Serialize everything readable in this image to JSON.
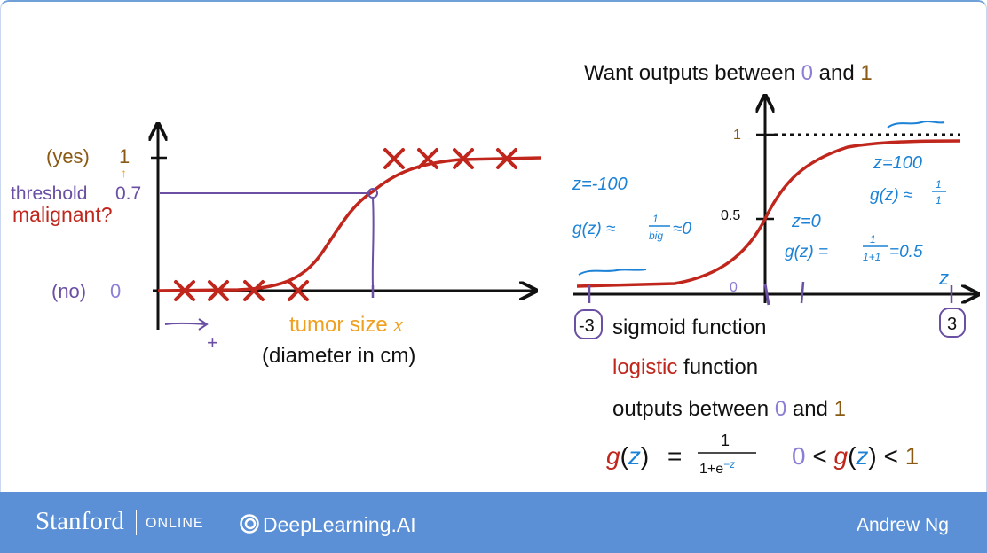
{
  "left_plot": {
    "y_yes_prefix": "(yes)",
    "y_yes_value": "1",
    "y_no_prefix": "(no)",
    "y_no_value": "0",
    "threshold_label": "threshold",
    "threshold_value": "0.7",
    "malignant_label": "malignant?",
    "x_label": "tumor size",
    "x_var": "x",
    "x_sublabel": "(diameter in cm)",
    "arrow_sign": "+"
  },
  "right_plot": {
    "want_prefix": "Want outputs between",
    "want_zero": "0",
    "want_and": "and",
    "want_one": "1",
    "y_tick_1": "1",
    "y_tick_half": "0.5",
    "x_tick_0": "0",
    "x_axis_var": "z",
    "left_bound": "-3",
    "right_bound": "3",
    "note_z_neg": "z=-100",
    "note_g_neg_prefix": "g(z) ≈",
    "note_g_neg_num": "1",
    "note_g_neg_den": "big",
    "note_g_neg_suffix": "≈0",
    "note_z_zero": "z=0",
    "note_g_zero_prefix": "g(z) =",
    "note_g_zero_num": "1",
    "note_g_zero_den": "1+1",
    "note_g_zero_suffix": "=0.5",
    "note_z_pos": "z=100",
    "note_g_pos_prefix": "g(z) ≈",
    "note_g_pos_num": "1",
    "note_g_pos_den": "1"
  },
  "text_block": {
    "sigmoid": "sigmoid function",
    "logistic_word": "logistic",
    "function_word": "function",
    "outputs_prefix": "outputs between",
    "outputs_zero": "0",
    "outputs_and": "and",
    "outputs_one": "1",
    "formula_g": "g",
    "formula_z": "z",
    "formula_eq": "=",
    "formula_num": "1",
    "formula_den": "1+e",
    "formula_exp": "−z",
    "ineq_zero": "0",
    "ineq_lt": "<",
    "ineq_one": "1"
  },
  "footer": {
    "stanford": "Stanford",
    "online": "ONLINE",
    "deeplearning": "DeepLearning.AI",
    "author": "Andrew Ng"
  },
  "colors": {
    "curve_red": "#c0261c",
    "brown": "#8a5a14",
    "purple": "#6a4fa3",
    "lavender": "#8a7fd6",
    "orange": "#f0a020",
    "note_blue": "#1b82d6",
    "footer_blue": "#5b90d6"
  }
}
